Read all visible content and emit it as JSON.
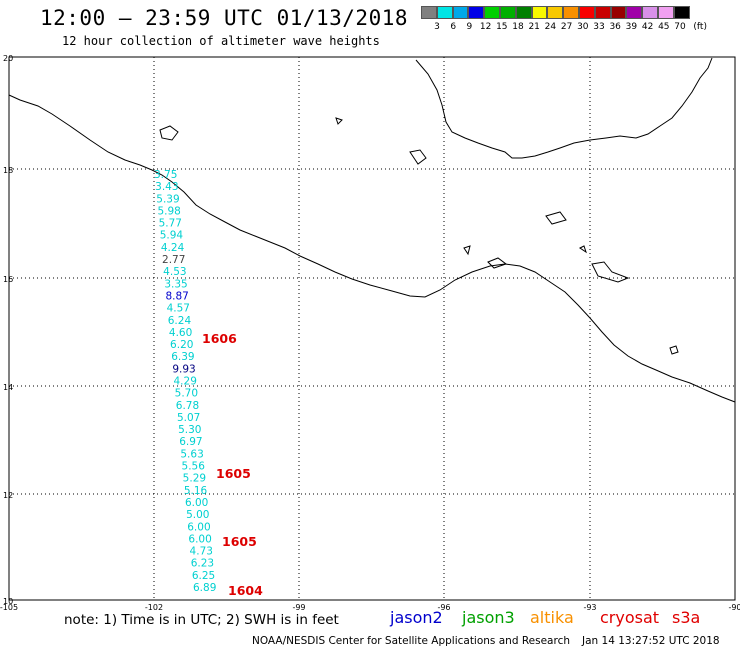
{
  "header": {
    "title": "12:00 – 23:59 UTC 01/13/2018",
    "subtitle": "12 hour collection of altimeter wave heights"
  },
  "colorbar": {
    "colors": [
      "#808080",
      "#00e5e5",
      "#00a8e8",
      "#0000e8",
      "#00d000",
      "#00b000",
      "#008000",
      "#f8f800",
      "#f8c800",
      "#f89000",
      "#f80000",
      "#c80000",
      "#980000",
      "#a000a8",
      "#d890e8",
      "#f0a0f0",
      "#000000"
    ],
    "labels": [
      "3",
      "6",
      "9",
      "12",
      "15",
      "18",
      "21",
      "24",
      "27",
      "30",
      "33",
      "36",
      "39",
      "42",
      "45",
      "70",
      "(ft)"
    ]
  },
  "axes": {
    "y_labels": [
      "20",
      "18",
      "16",
      "14",
      "12",
      "10"
    ],
    "x_labels": [
      "-105",
      "-102",
      "-99",
      "-96",
      "-93",
      "-90"
    ]
  },
  "track": {
    "values": [
      "3.75",
      "3.43",
      "5.39",
      "5.98",
      "5.77",
      "5.94",
      "4.24",
      "2.77",
      "4.53",
      "3.35",
      "8.87",
      "4.57",
      "6.24",
      "4.60",
      "6.20",
      "6.39",
      "9.93",
      "4.29",
      "5.70",
      "6.78",
      "5.07",
      "5.30",
      "6.97",
      "5.63",
      "5.56",
      "5.29",
      "5.16",
      "6.00",
      "5.00",
      "6.00",
      "6.00",
      "4.73",
      "6.23",
      "6.25",
      "6.89"
    ],
    "colors": [
      "c",
      "c",
      "c",
      "c",
      "c",
      "c",
      "c",
      "g",
      "c",
      "c",
      "b",
      "c",
      "c",
      "c",
      "c",
      "c",
      "n",
      "c",
      "c",
      "c",
      "c",
      "c",
      "c",
      "c",
      "c",
      "c",
      "c",
      "c",
      "c",
      "c",
      "c",
      "c",
      "c",
      "c",
      "c"
    ],
    "times": [
      "1606",
      "1605",
      "1605",
      "1604"
    ]
  },
  "footer": {
    "note": "note: 1) Time is in UTC; 2) SWH is in feet",
    "satellites": [
      {
        "name": "jason2",
        "color": "#0000cc"
      },
      {
        "name": "jason3",
        "color": "#00a000"
      },
      {
        "name": "altika",
        "color": "#f89000"
      },
      {
        "name": "cryosat",
        "color": "#e00000"
      },
      {
        "name": "s3a",
        "color": "#e00000"
      }
    ],
    "credit": "NOAA/NESDIS Center for Satellite Applications and Research",
    "timestamp": "Jan 14 13:27:52 UTC 2018"
  }
}
